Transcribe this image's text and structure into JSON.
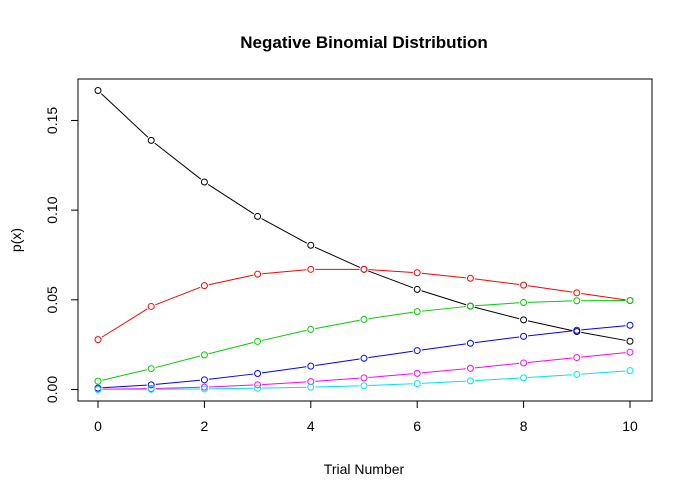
{
  "chart_data": {
    "type": "line",
    "title": "Negative Binomial Distribution",
    "xlabel": "Trial Number",
    "ylabel": "p(x)",
    "xlim": [
      0,
      10
    ],
    "ylim": [
      0,
      0.17
    ],
    "x_ticks": [
      0,
      2,
      4,
      6,
      8,
      10
    ],
    "x_tick_labels": [
      "0",
      "2",
      "4",
      "6",
      "8",
      "10"
    ],
    "y_ticks": [
      0,
      0.05,
      0.1,
      0.15
    ],
    "y_tick_labels": [
      "0.00",
      "0.05",
      "0.10",
      "0.15"
    ],
    "grid": false,
    "legend": "none",
    "marker": "open-circle",
    "x": [
      0,
      1,
      2,
      3,
      4,
      5,
      6,
      7,
      8,
      9,
      10
    ],
    "series": [
      {
        "color": "#000000",
        "values": [
          0.1667,
          0.1389,
          0.1157,
          0.0965,
          0.0804,
          0.067,
          0.0558,
          0.0465,
          0.0388,
          0.0323,
          0.0269
        ]
      },
      {
        "color": "#ff0000",
        "values": [
          0.0278,
          0.0463,
          0.0579,
          0.0643,
          0.067,
          0.067,
          0.0651,
          0.062,
          0.0582,
          0.0539,
          0.0496
        ]
      },
      {
        "color": "#00cd00",
        "values": [
          0.0046,
          0.0116,
          0.0193,
          0.0268,
          0.0335,
          0.0391,
          0.0434,
          0.0465,
          0.0485,
          0.0495,
          0.0496
        ]
      },
      {
        "color": "#0000ff",
        "values": [
          0.0008,
          0.0026,
          0.0054,
          0.0089,
          0.013,
          0.0174,
          0.0217,
          0.0258,
          0.0296,
          0.033,
          0.0358
        ]
      },
      {
        "color": "#ff00ff",
        "values": [
          0.0001,
          0.0005,
          0.0013,
          0.0026,
          0.0044,
          0.0065,
          0.009,
          0.0118,
          0.0148,
          0.0178,
          0.0208
        ]
      },
      {
        "color": "#00e5e5",
        "values": [
          0.0,
          0.0001,
          0.0003,
          0.0007,
          0.0013,
          0.0021,
          0.0033,
          0.0048,
          0.0065,
          0.0084,
          0.0105
        ]
      }
    ]
  }
}
